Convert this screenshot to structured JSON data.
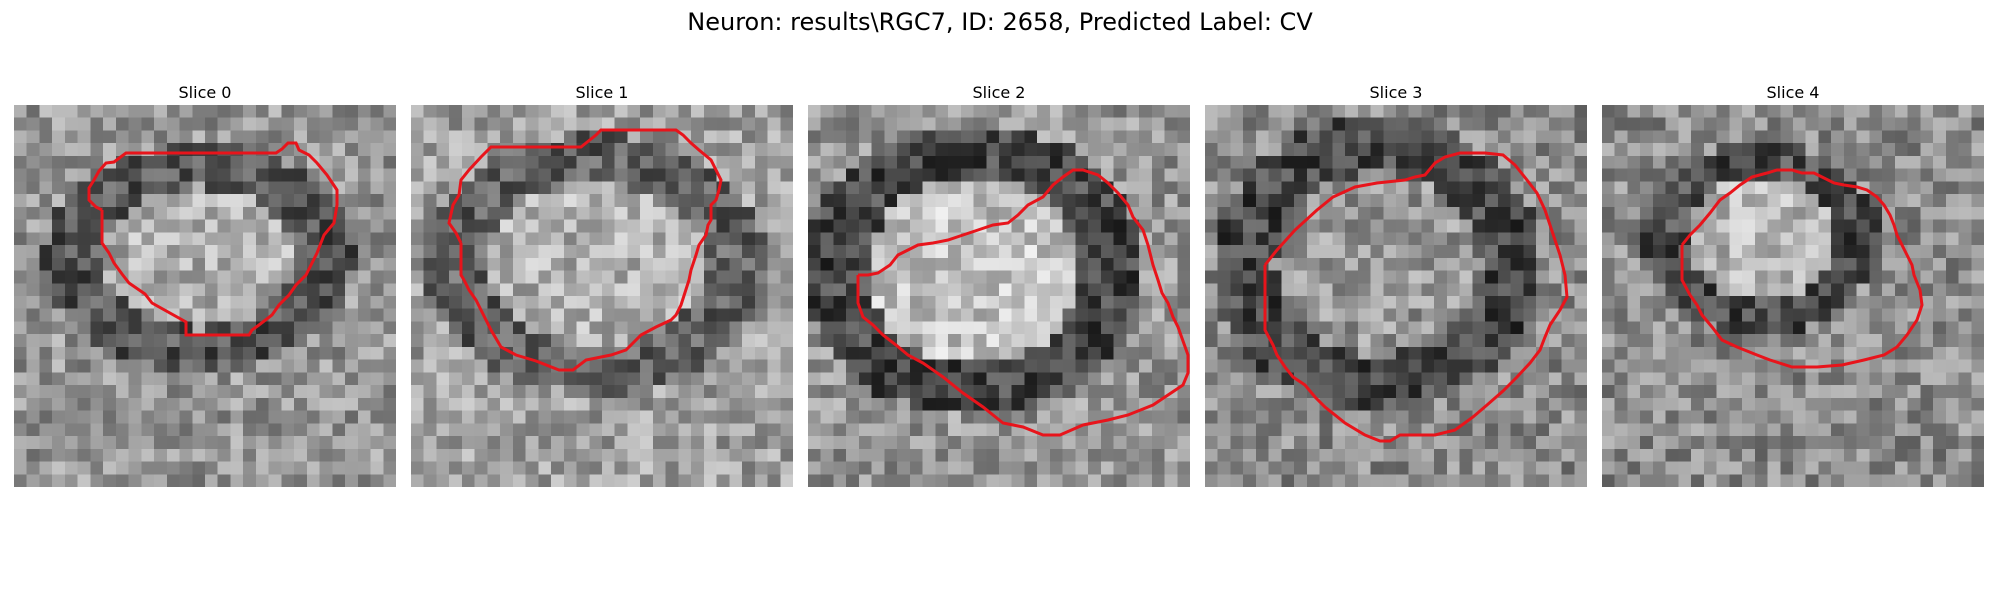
{
  "figure": {
    "title": "Neuron: results\\RGC7, ID: 2658, Predicted Label: CV"
  },
  "panels": [
    {
      "title": "Slice 0"
    },
    {
      "title": "Slice 1"
    },
    {
      "title": "Slice 2"
    },
    {
      "title": "Slice 3"
    },
    {
      "title": "Slice 4"
    }
  ],
  "colors": {
    "contour": "#e8141b",
    "background": "#ffffff"
  },
  "image_style": {
    "colormap": "grayscale",
    "contour_overlay": "red polygon outline of cell boundary"
  }
}
